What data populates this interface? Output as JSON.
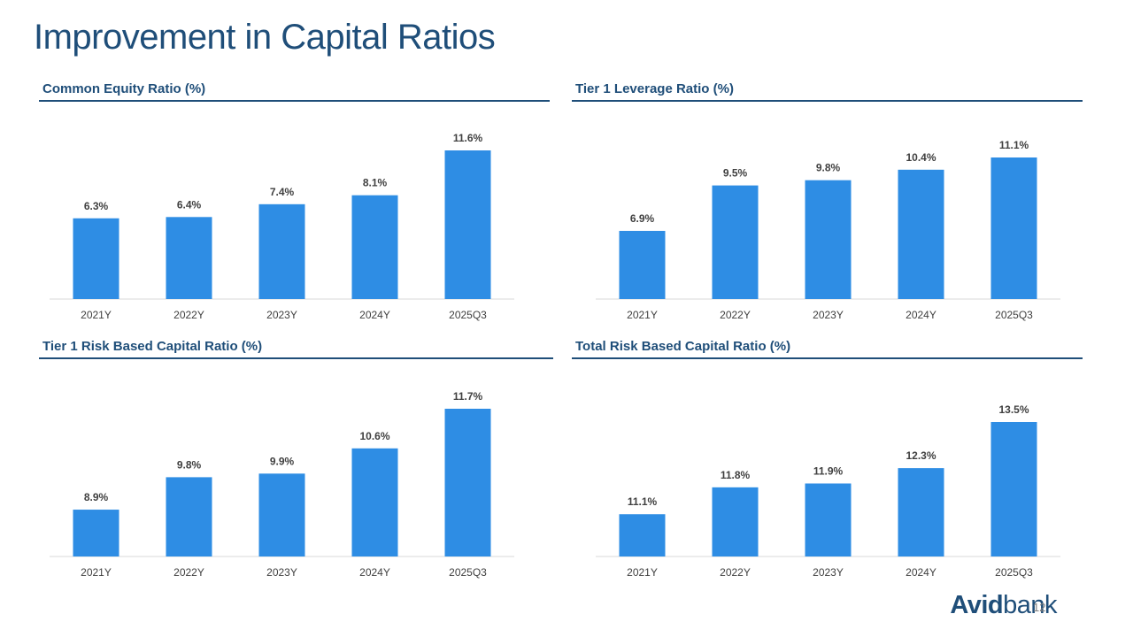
{
  "slide": {
    "title": "Improvement in Capital Ratios",
    "page_number": "12",
    "logo_text": {
      "part1": "Avid",
      "part2": "bank"
    }
  },
  "chart_data": [
    {
      "type": "bar",
      "title": "Common Equity Ratio (%)",
      "categories": [
        "2021Y",
        "2022Y",
        "2023Y",
        "2024Y",
        "2025Q3"
      ],
      "values": [
        6.3,
        6.4,
        7.4,
        8.1,
        11.6
      ],
      "data_labels": [
        "6.3%",
        "6.4%",
        "7.4%",
        "8.1%",
        "11.6%"
      ],
      "ylim": [
        0,
        11.6
      ],
      "bar_color": "#2e8de4",
      "grid": false
    },
    {
      "type": "bar",
      "title": "Tier 1 Leverage Ratio (%)",
      "categories": [
        "2021Y",
        "2022Y",
        "2023Y",
        "2024Y",
        "2025Q3"
      ],
      "values": [
        6.9,
        9.5,
        9.8,
        10.4,
        11.1
      ],
      "data_labels": [
        "6.9%",
        "9.5%",
        "9.8%",
        "10.4%",
        "11.1%"
      ],
      "ylim": [
        3.0,
        11.1
      ],
      "bar_color": "#2e8de4",
      "grid": false
    },
    {
      "type": "bar",
      "title": "Tier 1 Risk Based Capital Ratio (%)",
      "categories": [
        "2021Y",
        "2022Y",
        "2023Y",
        "2024Y",
        "2025Q3"
      ],
      "values": [
        8.9,
        9.8,
        9.9,
        10.6,
        11.7
      ],
      "data_labels": [
        "8.9%",
        "9.8%",
        "9.9%",
        "10.6%",
        "11.7%"
      ],
      "ylim": [
        7.6,
        11.7
      ],
      "bar_color": "#2e8de4",
      "grid": false
    },
    {
      "type": "bar",
      "title": "Total Risk Based Capital Ratio (%)",
      "categories": [
        "2021Y",
        "2022Y",
        "2023Y",
        "2024Y",
        "2025Q3"
      ],
      "values": [
        11.1,
        11.8,
        11.9,
        12.3,
        13.5
      ],
      "data_labels": [
        "11.1%",
        "11.8%",
        "11.9%",
        "12.3%",
        "13.5%"
      ],
      "ylim": [
        10.0,
        13.5
      ],
      "bar_color": "#2e8de4",
      "grid": false
    }
  ]
}
